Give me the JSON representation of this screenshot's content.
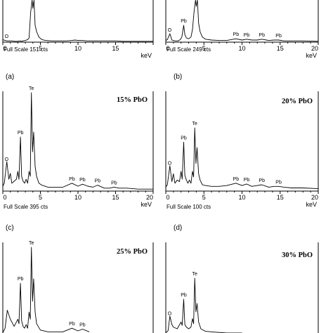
{
  "chart_data": [
    {
      "type": "line",
      "caption": "(a)",
      "title": "",
      "xlabel": "keV",
      "xticks": [
        0,
        5,
        10,
        15
      ],
      "xlim": [
        0,
        20
      ],
      "full_scale": "Full Scale 151 cts",
      "annotations": [
        {
          "label": "O",
          "x": 0.5
        }
      ],
      "x": [
        0,
        0.3,
        0.53,
        0.8,
        1.2,
        1.6,
        2.0,
        2.3,
        2.5,
        2.7,
        3.0,
        3.3,
        3.5,
        3.7,
        3.9,
        4.0,
        4.15,
        4.3,
        4.5,
        4.8,
        5.2,
        5.7,
        6.5,
        7.5,
        8.5,
        9.2,
        9.6,
        10.0,
        10.6,
        11.2,
        12.0,
        13.0,
        14.0,
        15.0,
        16.0,
        17.0,
        18.0,
        19.0,
        20.0
      ],
      "y": [
        6,
        4,
        3,
        3,
        3,
        2,
        2,
        3,
        2,
        3,
        4,
        6,
        10,
        70,
        100,
        80,
        100,
        40,
        25,
        12,
        6,
        4,
        3,
        3,
        3,
        4,
        5,
        4,
        4,
        3,
        3,
        3,
        3,
        3,
        2,
        2,
        2,
        2,
        2
      ]
    },
    {
      "type": "line",
      "caption": "(b)",
      "title": "",
      "xlabel": "keV",
      "xticks": [
        0,
        5,
        10,
        15,
        20
      ],
      "xlim": [
        0,
        20
      ],
      "full_scale": "Full Scale 249 cts",
      "annotations": [
        {
          "label": "O",
          "x": 0.5
        },
        {
          "label": "Pb",
          "x": 2.35
        },
        {
          "label": "Pb",
          "x": 9.2
        },
        {
          "label": "Pb",
          "x": 10.6
        },
        {
          "label": "Pb",
          "x": 12.6
        },
        {
          "label": "Pb",
          "x": 14.8
        }
      ],
      "x": [
        0,
        0.2,
        0.53,
        0.8,
        1.2,
        1.6,
        1.9,
        2.1,
        2.35,
        2.5,
        2.7,
        3.0,
        3.3,
        3.5,
        3.7,
        3.9,
        4.0,
        4.15,
        4.3,
        4.5,
        4.8,
        5.2,
        6.0,
        7.0,
        8.0,
        9.2,
        10.0,
        10.6,
        11.3,
        12.0,
        12.6,
        13.5,
        14.2,
        14.8,
        15.5,
        16.5,
        18.0,
        20.0
      ],
      "y": [
        4,
        6,
        20,
        5,
        3,
        3,
        6,
        12,
        40,
        18,
        10,
        8,
        12,
        30,
        70,
        100,
        85,
        100,
        45,
        25,
        12,
        7,
        5,
        4,
        4,
        8,
        5,
        7,
        5,
        5,
        7,
        4,
        5,
        5,
        3,
        3,
        3,
        2
      ]
    },
    {
      "type": "line",
      "caption": "(c)",
      "title": "15% PbO",
      "xlabel": "keV",
      "xticks": [
        0,
        5,
        10,
        15,
        20
      ],
      "xlim": [
        0,
        20
      ],
      "full_scale": "Full Scale 395 cts",
      "annotations": [
        {
          "label": "O",
          "x": 0.5
        },
        {
          "label": "Pb",
          "x": 2.35
        },
        {
          "label": "Te",
          "x": 3.8
        },
        {
          "label": "Pb",
          "x": 9.2
        },
        {
          "label": "Pb",
          "x": 10.6
        },
        {
          "label": "Pb",
          "x": 12.6
        },
        {
          "label": "Pb",
          "x": 14.8
        }
      ],
      "x": [
        0,
        0.2,
        0.53,
        0.8,
        1.0,
        1.2,
        1.5,
        1.8,
        2.0,
        2.15,
        2.35,
        2.5,
        2.7,
        2.9,
        3.1,
        3.3,
        3.5,
        3.65,
        3.8,
        3.95,
        4.1,
        4.3,
        4.5,
        4.8,
        5.2,
        6.0,
        7.0,
        8.0,
        9.2,
        10.0,
        10.6,
        11.3,
        12.0,
        12.6,
        13.5,
        14.2,
        14.8,
        15.5,
        16.5,
        18.0,
        20.0
      ],
      "y": [
        5,
        8,
        30,
        12,
        18,
        8,
        10,
        12,
        20,
        12,
        55,
        15,
        10,
        8,
        12,
        8,
        20,
        15,
        100,
        40,
        60,
        25,
        15,
        8,
        6,
        4,
        4,
        4,
        8,
        5,
        7,
        5,
        4,
        6,
        3,
        3,
        4,
        3,
        3,
        2,
        2
      ]
    },
    {
      "type": "line",
      "caption": "(d)",
      "title": "20% PbO",
      "xlabel": "keV",
      "xticks": [
        0,
        5,
        10,
        15,
        20
      ],
      "xlim": [
        0,
        20
      ],
      "full_scale": "Full Scale 100 cts",
      "annotations": [
        {
          "label": "O",
          "x": 0.5
        },
        {
          "label": "Pb",
          "x": 2.35
        },
        {
          "label": "Te",
          "x": 3.8
        },
        {
          "label": "Pb",
          "x": 9.2
        },
        {
          "label": "Pb",
          "x": 10.6
        },
        {
          "label": "Pb",
          "x": 12.6
        },
        {
          "label": "Pb",
          "x": 14.8
        }
      ],
      "x": [
        0,
        0.2,
        0.53,
        0.8,
        1.0,
        1.2,
        1.5,
        1.8,
        2.0,
        2.15,
        2.35,
        2.5,
        2.7,
        2.9,
        3.1,
        3.3,
        3.5,
        3.65,
        3.8,
        3.95,
        4.1,
        4.3,
        4.5,
        4.8,
        5.2,
        6.0,
        7.0,
        8.0,
        9.2,
        10.0,
        10.6,
        11.3,
        12.0,
        12.6,
        13.5,
        14.2,
        14.8,
        15.5,
        16.5,
        18.0,
        20.0
      ],
      "y": [
        5,
        8,
        32,
        12,
        22,
        10,
        14,
        12,
        25,
        15,
        62,
        20,
        14,
        10,
        14,
        10,
        25,
        18,
        80,
        35,
        55,
        22,
        14,
        8,
        7,
        6,
        6,
        7,
        10,
        7,
        9,
        6,
        7,
        8,
        5,
        6,
        6,
        5,
        4,
        4,
        3
      ]
    },
    {
      "type": "line",
      "caption": "",
      "title": "25% PbO",
      "xlabel": "",
      "xticks": [],
      "xlim": [
        0,
        20
      ],
      "full_scale": "",
      "annotations": [
        {
          "label": "Pb",
          "x": 2.35
        },
        {
          "label": "Te",
          "x": 3.8
        },
        {
          "label": "Pb",
          "x": 9.2
        },
        {
          "label": "Pb",
          "x": 10.6
        }
      ],
      "x": [
        0,
        0.3,
        0.6,
        1.0,
        1.5,
        2.0,
        2.15,
        2.35,
        2.5,
        2.7,
        2.9,
        3.1,
        3.3,
        3.5,
        3.65,
        3.8,
        3.95,
        4.1,
        4.3,
        4.5,
        5.0,
        6.0,
        8.0,
        9.2,
        10.0,
        10.6,
        11.5
      ],
      "y": [
        5,
        10,
        30,
        20,
        12,
        20,
        15,
        60,
        18,
        12,
        10,
        14,
        10,
        28,
        20,
        100,
        40,
        65,
        28,
        15,
        8,
        6,
        6,
        10,
        7,
        9,
        6
      ]
    },
    {
      "type": "line",
      "caption": "",
      "title": "30% PbO",
      "xlabel": "",
      "xticks": [],
      "xlim": [
        0,
        20
      ],
      "full_scale": "",
      "annotations": [
        {
          "label": "O",
          "x": 0.5
        },
        {
          "label": "Pb",
          "x": 2.35
        },
        {
          "label": "Te",
          "x": 3.8
        }
      ],
      "x": [
        0,
        0.3,
        0.53,
        0.8,
        1.0,
        1.5,
        2.0,
        2.15,
        2.35,
        2.5,
        2.7,
        3.0,
        3.3,
        3.5,
        3.65,
        3.8,
        3.95,
        4.1,
        4.3,
        4.6,
        5.2,
        6.5,
        8.0,
        10.0
      ],
      "y": [
        5,
        8,
        25,
        15,
        12,
        10,
        18,
        14,
        45,
        15,
        12,
        10,
        12,
        22,
        16,
        70,
        30,
        40,
        18,
        10,
        7,
        6,
        5,
        5
      ]
    }
  ]
}
